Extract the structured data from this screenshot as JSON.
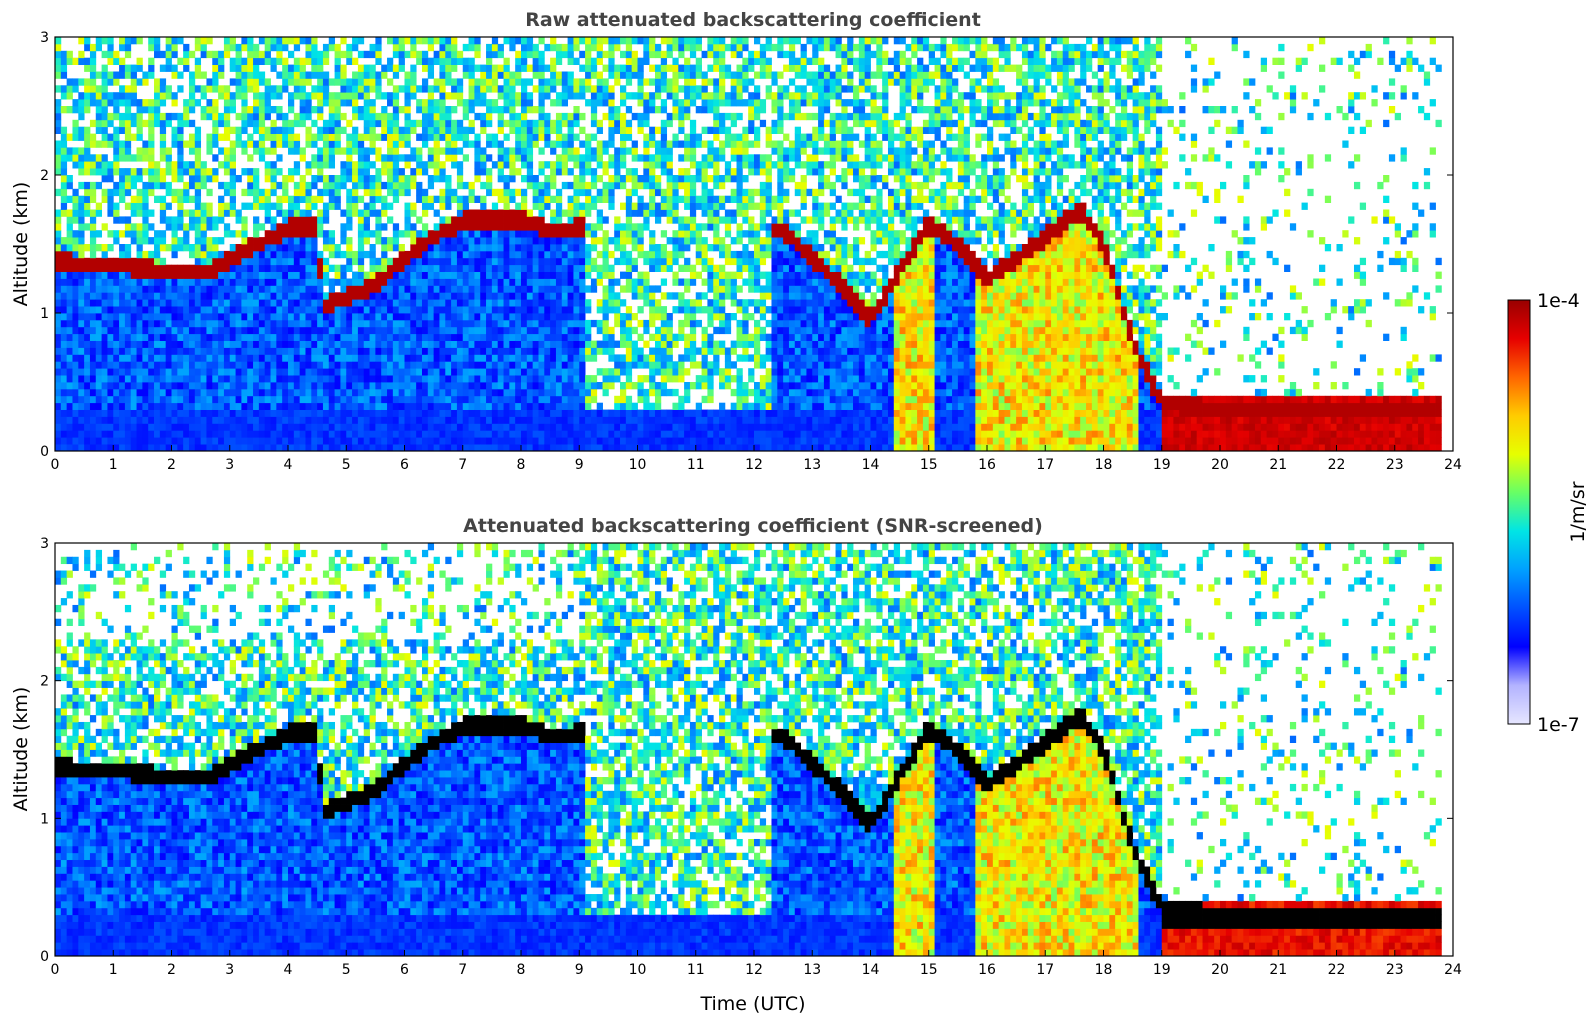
{
  "colors": {
    "colormap": [
      "#e6e6ff",
      "#b3b3ff",
      "#0000ff",
      "#0050ff",
      "#00a0ff",
      "#00e5e5",
      "#66ff66",
      "#e6ff00",
      "#ffcc00",
      "#ff6600",
      "#e60000",
      "#990000"
    ],
    "screened_peak": "#000000",
    "background": "#ffffff"
  },
  "colorbar": {
    "label": "1/m/sr",
    "max_label": "1e-4",
    "min_label": "1e-7",
    "scale": "log"
  },
  "chart_data": [
    {
      "type": "heatmap",
      "title": "Raw attenuated backscattering coefficient",
      "xlabel": "",
      "ylabel": "Altitude (km)",
      "xlim": [
        0,
        24
      ],
      "ylim": [
        0,
        3
      ],
      "x_ticks": [
        "0",
        "1",
        "2",
        "3",
        "4",
        "5",
        "6",
        "7",
        "8",
        "9",
        "10",
        "11",
        "12",
        "13",
        "14",
        "15",
        "16",
        "17",
        "18",
        "19",
        "20",
        "21",
        "22",
        "23",
        "24"
      ],
      "y_ticks": [
        "0",
        "1",
        "2",
        "3"
      ],
      "layer_top_km": {
        "time_utc": [
          0,
          1,
          2,
          2.7,
          3,
          3.5,
          4,
          4.5,
          4.6,
          5,
          5.5,
          6,
          6.5,
          7,
          7.5,
          8,
          8.5,
          9,
          12.5,
          13,
          13.5,
          14,
          15,
          15.5,
          16,
          16.5,
          17,
          17.3,
          17.6,
          18,
          18.5,
          19,
          20,
          21,
          22,
          23,
          23.8
        ],
        "altitude_km": [
          1.37,
          1.35,
          1.3,
          1.3,
          1.4,
          1.5,
          1.62,
          1.62,
          1.05,
          1.12,
          1.2,
          1.4,
          1.55,
          1.67,
          1.68,
          1.68,
          1.6,
          1.62,
          1.6,
          1.4,
          1.2,
          0.95,
          1.65,
          1.5,
          1.25,
          1.4,
          1.55,
          1.65,
          1.75,
          1.5,
          0.8,
          0.35,
          0.3,
          0.3,
          0.3,
          0.3,
          0.3
        ]
      }
    },
    {
      "type": "heatmap",
      "title": "Attenuated backscattering coefficient (SNR-screened)",
      "xlabel": "Time (UTC)",
      "ylabel": "Altitude (km)",
      "xlim": [
        0,
        24
      ],
      "ylim": [
        0,
        3
      ],
      "x_ticks": [
        "0",
        "1",
        "2",
        "3",
        "4",
        "5",
        "6",
        "7",
        "8",
        "9",
        "10",
        "11",
        "12",
        "13",
        "14",
        "15",
        "16",
        "17",
        "18",
        "19",
        "20",
        "21",
        "22",
        "23",
        "24"
      ],
      "y_ticks": [
        "0",
        "1",
        "2",
        "3"
      ]
    }
  ]
}
